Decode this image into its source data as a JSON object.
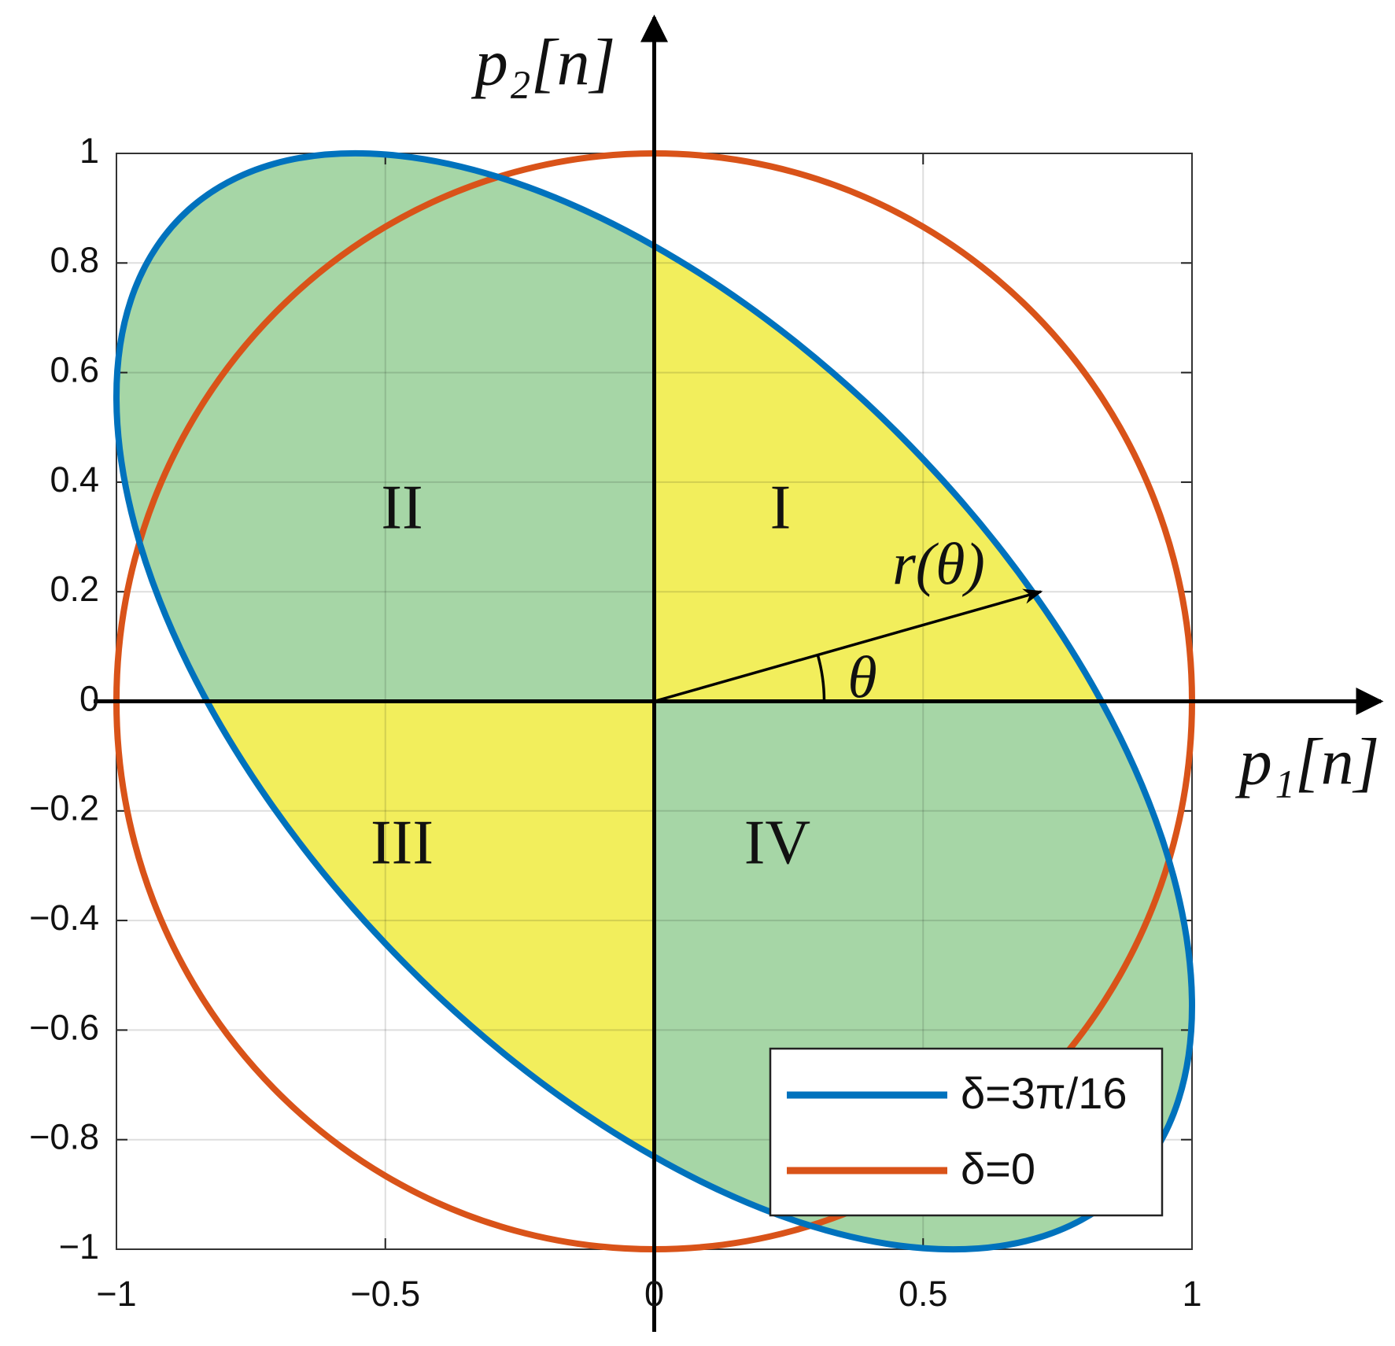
{
  "chart_data": {
    "type": "line",
    "series": [
      {
        "name": "δ=3π/16",
        "color": "#0072bd",
        "x": [
          1,
          0.966,
          0.866,
          0.707,
          0.5,
          0.259,
          0,
          -0.259,
          -0.5,
          -0.707,
          -0.866,
          -0.966,
          -1,
          -0.966,
          -0.866,
          -0.707,
          -0.5,
          -0.259,
          0,
          0.259,
          0.5,
          0.707,
          0.866,
          0.966
        ],
        "values": [
          -0.556,
          -0.321,
          -0.065,
          0.195,
          0.442,
          0.659,
          0.831,
          0.947,
          0.998,
          0.981,
          0.897,
          0.752,
          0.556,
          0.321,
          0.065,
          -0.195,
          -0.442,
          -0.659,
          -0.831,
          -0.947,
          -0.998,
          -0.981,
          -0.897,
          -0.752
        ]
      },
      {
        "name": "δ=0",
        "color": "#d95319",
        "x": [
          1,
          0.966,
          0.866,
          0.707,
          0.5,
          0.259,
          0,
          -0.259,
          -0.5,
          -0.707,
          -0.866,
          -0.966,
          -1,
          -0.966,
          -0.866,
          -0.707,
          -0.5,
          -0.259,
          0,
          0.259,
          0.5,
          0.707,
          0.866,
          0.966
        ],
        "values": [
          0,
          0.259,
          0.5,
          0.707,
          0.866,
          0.966,
          1,
          0.966,
          0.866,
          0.707,
          0.5,
          0.259,
          0,
          -0.259,
          -0.5,
          -0.707,
          -0.866,
          -0.966,
          -1,
          -0.966,
          -0.866,
          -0.707,
          -0.5,
          -0.259
        ]
      }
    ],
    "xlabel": "p₁[n]",
    "ylabel": "p₂[n]",
    "annotations": [
      "II",
      "I",
      "III",
      "IV",
      "r(θ)",
      "θ"
    ],
    "fill_colors": {
      "odd_quadrants": "#f2ee5c",
      "even_quadrants": "#a6d6a6"
    },
    "xlim": [
      -1,
      1
    ],
    "ylim": [
      -1,
      1
    ],
    "xticks": [
      {
        "value": -1,
        "label": "−1"
      },
      {
        "value": -0.5,
        "label": "−0.5"
      },
      0,
      0.5,
      1
    ],
    "yticks": [
      {
        "value": -1,
        "label": "−1"
      },
      {
        "value": -0.8,
        "label": "−0.8"
      },
      {
        "value": -0.6,
        "label": "−0.6"
      },
      {
        "value": -0.4,
        "label": "−0.4"
      },
      {
        "value": -0.2,
        "label": "−0.2"
      },
      0,
      0.2,
      0.4,
      0.6,
      0.8,
      1
    ],
    "grid": true,
    "legend": "lower right"
  }
}
